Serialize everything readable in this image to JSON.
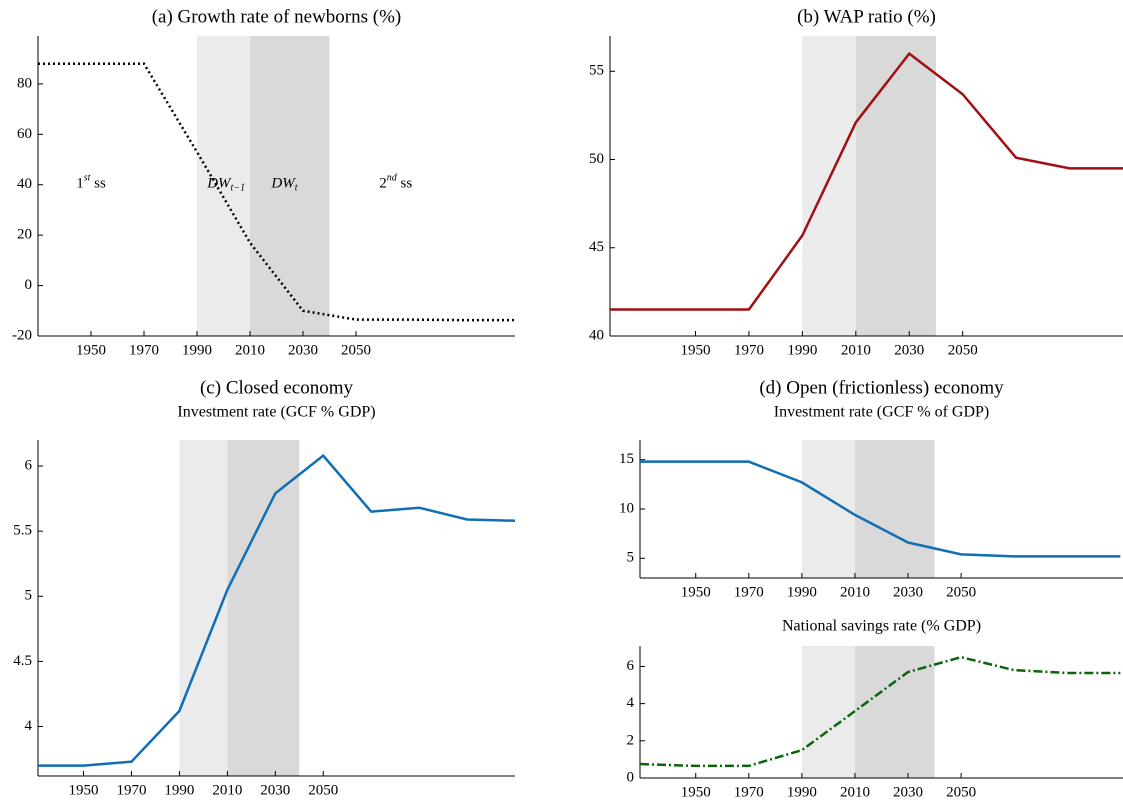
{
  "chart_data": [
    {
      "type": "line",
      "title": "(a) Growth rate of newborns (%)",
      "x": [
        1930,
        1950,
        1970,
        1990,
        2010,
        2030,
        2050,
        2070,
        2090,
        2110
      ],
      "values": [
        88,
        88,
        88,
        53,
        17,
        -10,
        -13.5,
        -13.5,
        -13.7,
        -13.7
      ],
      "color": "#000000",
      "line_style": "dotted",
      "xlim": [
        1930,
        2110
      ],
      "xticks": [
        1950,
        1970,
        1990,
        2010,
        2030,
        2050
      ],
      "ylim": [
        -20,
        99
      ],
      "yticks": [
        -20,
        0,
        20,
        40,
        60,
        80
      ],
      "shaded_regions": [
        {
          "range": [
            1990,
            2010
          ],
          "color": "#ebebeb"
        },
        {
          "range": [
            2010,
            2040
          ],
          "color": "#d9d9d9"
        }
      ],
      "annotations": [
        {
          "x": 1950,
          "y": 40,
          "text": "1",
          "sup": "st",
          "after": " ss"
        },
        {
          "x": 2001,
          "y": 40,
          "text": "DW",
          "sub": "t−1"
        },
        {
          "x": 2023,
          "y": 40,
          "text": "DW",
          "sub": "t"
        },
        {
          "x": 2065,
          "y": 40,
          "text": "2",
          "sup": "nd",
          "after": " ss"
        }
      ]
    },
    {
      "type": "line",
      "title": "(b) WAP ratio (%)",
      "x": [
        1918,
        1970,
        1990,
        2010,
        2030,
        2050,
        2070,
        2090,
        2110
      ],
      "values": [
        41.5,
        41.5,
        45.7,
        52.1,
        56,
        53.7,
        50.1,
        49.5,
        49.5
      ],
      "color": "#a00f14",
      "line_style": "solid",
      "xlim": [
        1918,
        2110
      ],
      "xticks": [
        1950,
        1970,
        1990,
        2010,
        2030,
        2050
      ],
      "ylim": [
        40,
        57
      ],
      "yticks": [
        40,
        45,
        50,
        55
      ],
      "shaded_regions": [
        {
          "range": [
            1990,
            2010
          ],
          "color": "#ebebeb"
        },
        {
          "range": [
            2010,
            2040
          ],
          "color": "#d9d9d9"
        }
      ]
    },
    {
      "type": "line",
      "title": "(c) Closed economy",
      "subtitle": "Investment rate (GCF % GDP)",
      "x": [
        1931,
        1950,
        1970,
        1990,
        2010,
        2030,
        2050,
        2070,
        2090,
        2110,
        2130
      ],
      "values": [
        3.7,
        3.7,
        3.73,
        4.12,
        5.05,
        5.79,
        6.08,
        5.65,
        5.68,
        5.59,
        5.58
      ],
      "color": "#0f6eb4",
      "line_style": "solid",
      "xlim": [
        1931,
        2130
      ],
      "xticks": [
        1950,
        1970,
        1990,
        2010,
        2030,
        2050
      ],
      "ylim": [
        3.62,
        6.2
      ],
      "yticks": [
        4,
        4.5,
        5,
        5.5,
        6
      ],
      "shaded_regions": [
        {
          "range": [
            1990,
            2010
          ],
          "color": "#ebebeb"
        },
        {
          "range": [
            2010,
            2040
          ],
          "color": "#d9d9d9"
        }
      ]
    },
    {
      "type": "line",
      "title": "(d) Open (frictionless) economy",
      "subtitle": "Investment rate (GCF % of GDP)",
      "x": [
        1929,
        1950,
        1970,
        1990,
        2010,
        2030,
        2050,
        2070,
        2090,
        2110
      ],
      "values": [
        14.8,
        14.8,
        14.8,
        12.7,
        9.4,
        6.6,
        5.4,
        5.2,
        5.2,
        5.2
      ],
      "color": "#0f6eb4",
      "line_style": "solid",
      "xlim": [
        1929,
        2111
      ],
      "xticks": [
        1950,
        1970,
        1990,
        2010,
        2030,
        2050
      ],
      "ylim": [
        3,
        17
      ],
      "yticks": [
        5,
        10,
        15
      ],
      "shaded_regions": [
        {
          "range": [
            1990,
            2010
          ],
          "color": "#ebebeb"
        },
        {
          "range": [
            2010,
            2040
          ],
          "color": "#d9d9d9"
        }
      ]
    },
    {
      "type": "line",
      "subtitle": "National savings rate (% GDP)",
      "x": [
        1929,
        1950,
        1970,
        1990,
        2010,
        2030,
        2050,
        2070,
        2090,
        2110
      ],
      "values": [
        0.75,
        0.65,
        0.65,
        1.5,
        3.6,
        5.7,
        6.5,
        5.8,
        5.65,
        5.65
      ],
      "color": "#0a640a",
      "line_style": "dashdot",
      "xlim": [
        1929,
        2111
      ],
      "xticks": [
        1950,
        1970,
        1990,
        2010,
        2030,
        2050
      ],
      "ylim": [
        0,
        7.1
      ],
      "yticks": [
        0,
        2,
        4,
        6
      ],
      "shaded_regions": [
        {
          "range": [
            1990,
            2010
          ],
          "color": "#ebebeb"
        },
        {
          "range": [
            2010,
            2040
          ],
          "color": "#d9d9d9"
        }
      ]
    }
  ]
}
